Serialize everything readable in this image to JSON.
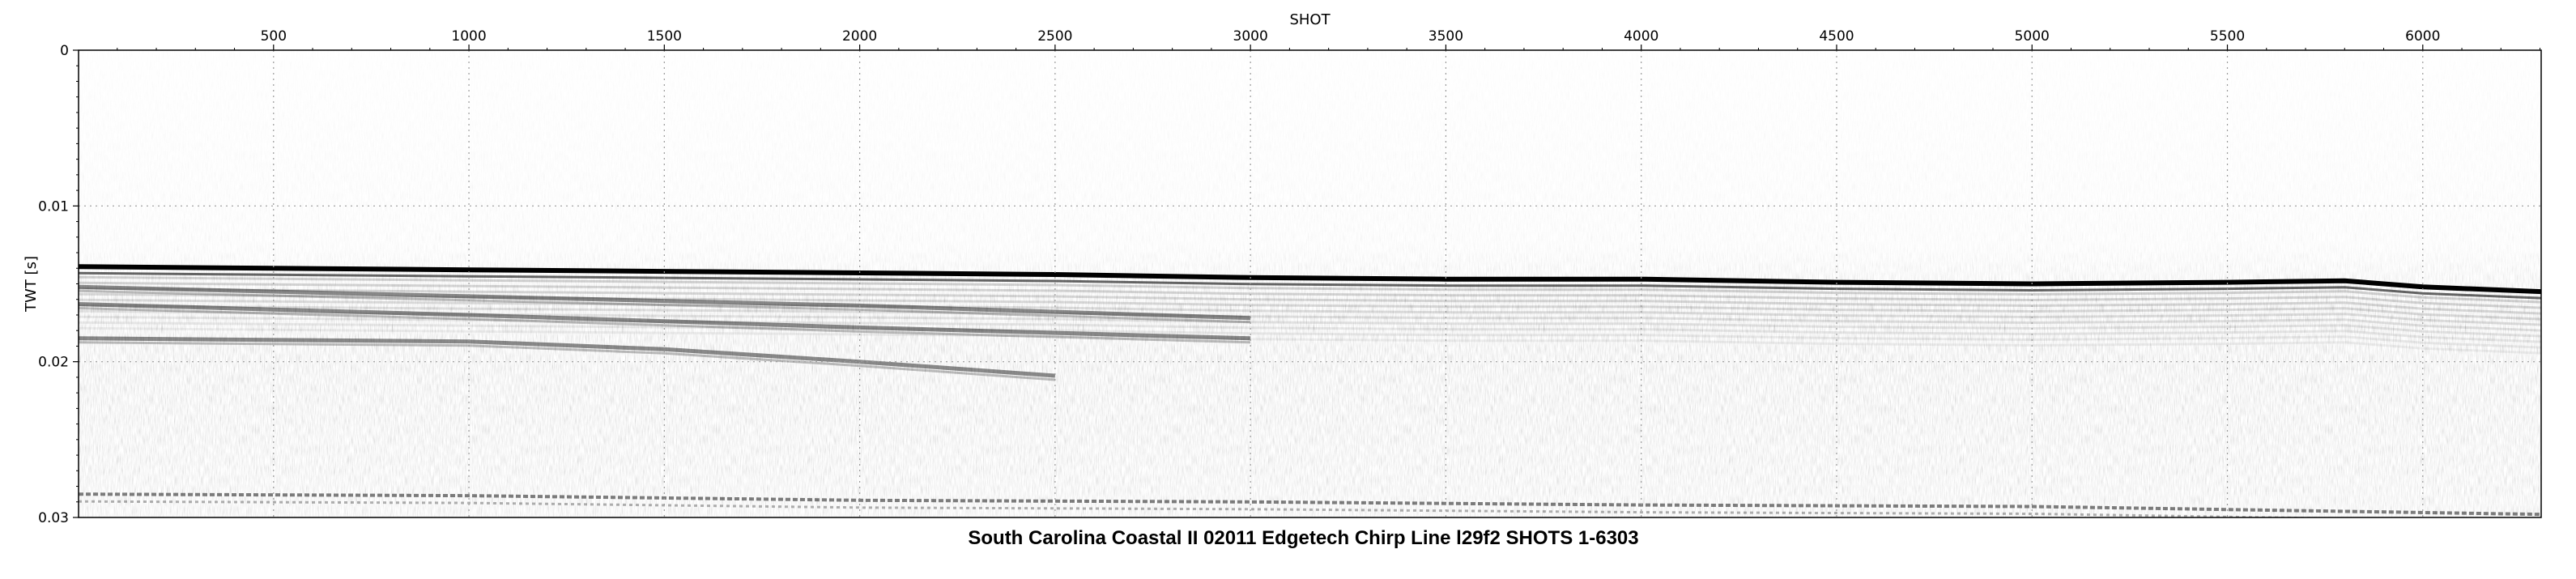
{
  "chart_data": {
    "type": "heatmap",
    "title": "South Carolina Coastal II 02011 Edgetech Chirp Line l29f2 SHOTS 1-6303",
    "xlabel": "SHOT",
    "ylabel": "TWT [s]",
    "x_axis_position": "top",
    "xlim": [
      1,
      6303
    ],
    "ylim": [
      0,
      0.03
    ],
    "y_inverted": true,
    "x_ticks": [
      500,
      1000,
      1500,
      2000,
      2500,
      3000,
      3500,
      4000,
      4500,
      5000,
      5500,
      6000
    ],
    "x_tick_labels": [
      "500",
      "1000",
      "1500",
      "2000",
      "2500",
      "3000",
      "3500",
      "4000",
      "4500",
      "5000",
      "5500",
      "6000"
    ],
    "y_ticks": [
      0,
      0.01,
      0.02,
      0.03
    ],
    "y_tick_labels": [
      "0",
      "0.01",
      "0.02",
      "0.03"
    ],
    "grid": true,
    "colormap": "grayscale",
    "seafloor_reflector": {
      "shot": [
        1,
        500,
        1000,
        1500,
        2000,
        2500,
        3000,
        3500,
        4000,
        4500,
        5000,
        5500,
        5800,
        6000,
        6303
      ],
      "twt": [
        0.0139,
        0.014,
        0.0141,
        0.0142,
        0.0143,
        0.0144,
        0.0146,
        0.0147,
        0.0147,
        0.0149,
        0.015,
        0.0149,
        0.0148,
        0.0152,
        0.0155
      ]
    },
    "dipping_reflectors": [
      {
        "shot": [
          1,
          1000,
          2000,
          3000
        ],
        "twt": [
          0.0152,
          0.0158,
          0.0164,
          0.0172
        ]
      },
      {
        "shot": [
          1,
          1000,
          2000,
          3000
        ],
        "twt": [
          0.0163,
          0.017,
          0.0178,
          0.0185
        ]
      },
      {
        "shot": [
          1,
          1000,
          1500,
          2000,
          2500
        ],
        "twt": [
          0.0185,
          0.0187,
          0.0192,
          0.02,
          0.0209
        ]
      }
    ],
    "multiple_reflector": {
      "shot": [
        1,
        1000,
        2000,
        3000,
        4000,
        5000,
        6303
      ],
      "twt": [
        0.0285,
        0.0286,
        0.0289,
        0.029,
        0.0292,
        0.0293,
        0.0298
      ]
    }
  },
  "colors": {
    "background": "#ffffff",
    "reflector": "#000000",
    "grid": "#9a9a9a",
    "noise": "#dcdcdc"
  }
}
